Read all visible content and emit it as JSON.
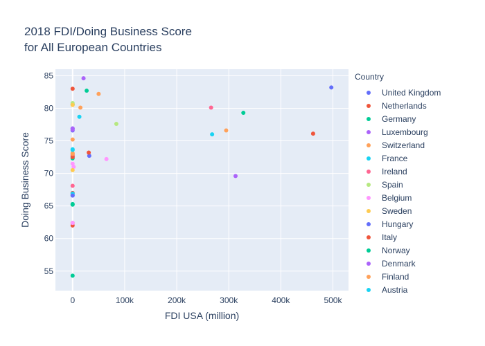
{
  "chart_data": {
    "type": "scatter",
    "title_lines": [
      "2018 FDI/Doing Business Score",
      "for All European Countries"
    ],
    "xlabel": "FDI USA (million)",
    "ylabel": "Doing Business Score",
    "xlim": [
      -33000,
      530000
    ],
    "ylim": [
      52.0,
      86.0
    ],
    "x_ticks": [
      0,
      100000,
      200000,
      300000,
      400000,
      500000
    ],
    "x_tick_labels": [
      "0",
      "100k",
      "200k",
      "300k",
      "400k",
      "500k"
    ],
    "y_ticks": [
      55,
      60,
      65,
      70,
      75,
      80,
      85
    ],
    "y_tick_labels": [
      "55",
      "60",
      "65",
      "70",
      "75",
      "80",
      "85"
    ],
    "grid": true,
    "legend_title": "Country",
    "legend_placement": "right",
    "plot_bg": "#E5ECF6",
    "series": [
      {
        "name": "United Kingdom",
        "color": "#636EFA",
        "points": [
          [
            497000,
            83.2
          ],
          [
            0,
            76.9
          ],
          [
            0,
            76.6
          ],
          [
            0,
            72.5
          ],
          [
            32000,
            72.7
          ],
          [
            0,
            66.7
          ]
        ]
      },
      {
        "name": "Netherlands",
        "color": "#EF553B",
        "points": [
          [
            462000,
            76.1
          ],
          [
            0,
            83.0
          ],
          [
            31000,
            73.2
          ],
          [
            0,
            72.7
          ],
          [
            0,
            67.0
          ],
          [
            0,
            62.0
          ]
        ]
      },
      {
        "name": "Germany",
        "color": "#00CC96",
        "points": [
          [
            328000,
            79.3
          ],
          [
            27000,
            82.7
          ],
          [
            0,
            80.6
          ],
          [
            0,
            72.3
          ],
          [
            0,
            65.2
          ],
          [
            0,
            54.3
          ]
        ]
      },
      {
        "name": "Luxembourg",
        "color": "#AB63FA",
        "points": [
          [
            313000,
            69.6
          ],
          [
            21000,
            84.6
          ],
          [
            0,
            76.9
          ]
        ]
      },
      {
        "name": "Switzerland",
        "color": "#FFA15A",
        "points": [
          [
            295000,
            76.6
          ],
          [
            50000,
            82.2
          ],
          [
            15000,
            80.1
          ],
          [
            0,
            75.2
          ],
          [
            0,
            73.1
          ]
        ]
      },
      {
        "name": "France",
        "color": "#19D3F3",
        "points": [
          [
            268000,
            76.0
          ],
          [
            13000,
            78.7
          ],
          [
            0,
            73.7
          ],
          [
            0,
            66.9
          ]
        ]
      },
      {
        "name": "Ireland",
        "color": "#FF6692",
        "points": [
          [
            266000,
            80.1
          ],
          [
            0,
            68.1
          ],
          [
            0,
            72.9
          ],
          [
            0,
            62.4
          ]
        ]
      },
      {
        "name": "Spain",
        "color": "#B6E880",
        "points": [
          [
            84000,
            77.6
          ],
          [
            0,
            80.8
          ]
        ]
      },
      {
        "name": "Belgium",
        "color": "#FF97FF",
        "points": [
          [
            65000,
            72.2
          ],
          [
            0,
            71.5
          ],
          [
            2000,
            71.0
          ],
          [
            0,
            62.4
          ]
        ]
      },
      {
        "name": "Sweden",
        "color": "#FECB52",
        "points": [
          [
            0,
            70.5
          ],
          [
            0,
            80.5
          ]
        ]
      },
      {
        "name": "Hungary",
        "color": "#636EFA",
        "points": [
          [
            0,
            66.6
          ]
        ]
      },
      {
        "name": "Italy",
        "color": "#EF553B",
        "points": [
          [
            0,
            72.5
          ]
        ]
      },
      {
        "name": "Norway",
        "color": "#00CC96",
        "points": [
          [
            0,
            65.3
          ]
        ]
      },
      {
        "name": "Denmark",
        "color": "#AB63FA",
        "points": [
          [
            0,
            76.7
          ]
        ]
      },
      {
        "name": "Finland",
        "color": "#FFA15A",
        "points": [
          [
            0,
            73.0
          ]
        ]
      },
      {
        "name": "Austria",
        "color": "#19D3F3",
        "points": [
          [
            0,
            73.6
          ]
        ]
      }
    ]
  }
}
